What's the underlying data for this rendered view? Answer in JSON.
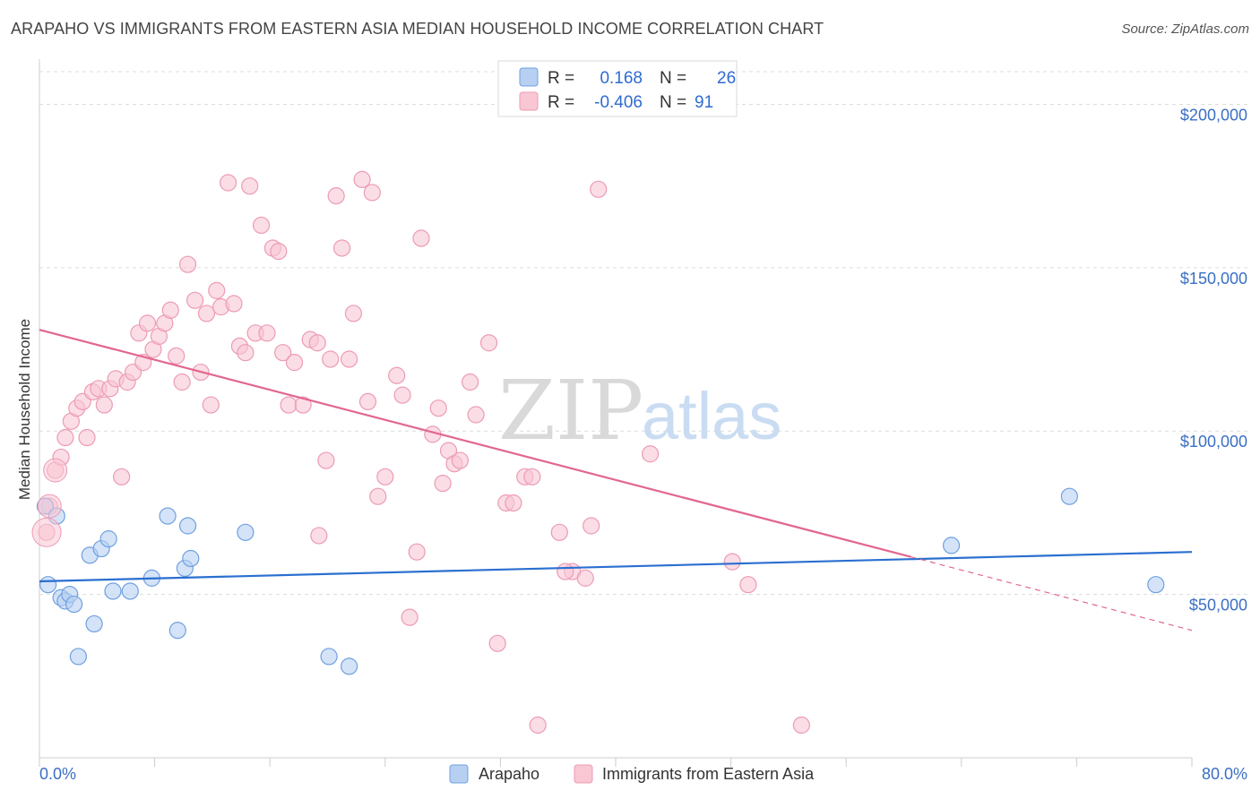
{
  "header": {
    "title": "ARAPAHO VS IMMIGRANTS FROM EASTERN ASIA MEDIAN HOUSEHOLD INCOME CORRELATION CHART",
    "source": "Source: ZipAtlas.com"
  },
  "legend_box": {
    "rows": [
      {
        "r_label": "R =",
        "r_value": "0.168",
        "n_label": "N =",
        "n_value": "26",
        "color": "#a9c8f0"
      },
      {
        "r_label": "R =",
        "r_value": "-0.406",
        "n_label": "N =",
        "n_value": "91",
        "color": "#f5b8cb"
      }
    ]
  },
  "watermark": {
    "zip": "ZIP",
    "atlas": "atlas"
  },
  "chart_data": {
    "type": "scatter",
    "title": "ARAPAHO VS IMMIGRANTS FROM EASTERN ASIA MEDIAN HOUSEHOLD INCOME CORRELATION CHART",
    "ylabel": "Median Household Income",
    "xlim": [
      0,
      80
    ],
    "ylim": [
      0,
      210000
    ],
    "x_tick_labels": [
      "0.0%",
      "80.0%"
    ],
    "y_tick_labels": [
      "$50,000",
      "$100,000",
      "$150,000",
      "$200,000"
    ],
    "y_ticks": [
      50000,
      100000,
      150000,
      200000
    ],
    "grid": true,
    "legend_position": "bottom-center",
    "series": [
      {
        "name": "Arapaho",
        "color": "#6fa0e0",
        "fill": "#b7d0f2",
        "trend": {
          "x": [
            0,
            80
          ],
          "y": [
            54000,
            63000
          ],
          "color": "#2a6fd0"
        },
        "points": [
          [
            0.4,
            77000
          ],
          [
            0.6,
            53000
          ],
          [
            1.2,
            74000
          ],
          [
            1.5,
            49000
          ],
          [
            1.8,
            48000
          ],
          [
            2.1,
            50000
          ],
          [
            2.4,
            47000
          ],
          [
            2.7,
            31000
          ],
          [
            3.5,
            62000
          ],
          [
            3.8,
            41000
          ],
          [
            4.3,
            64000
          ],
          [
            4.8,
            67000
          ],
          [
            5.1,
            51000
          ],
          [
            6.3,
            51000
          ],
          [
            7.8,
            55000
          ],
          [
            8.9,
            74000
          ],
          [
            9.6,
            39000
          ],
          [
            10.1,
            58000
          ],
          [
            10.3,
            71000
          ],
          [
            10.5,
            61000
          ],
          [
            14.3,
            69000
          ],
          [
            20.1,
            31000
          ],
          [
            21.5,
            28000
          ],
          [
            63.3,
            65000
          ],
          [
            71.5,
            80000
          ],
          [
            77.5,
            53000
          ]
        ]
      },
      {
        "name": "Immigrants from Eastern Asia",
        "color": "#ec9bb5",
        "fill": "#f9c6d4",
        "trend": {
          "x": [
            0,
            60.5
          ],
          "y": [
            131000,
            61500
          ],
          "color": "#e26690"
        },
        "trend_dashed": {
          "x": [
            60.5,
            80
          ],
          "y": [
            61500,
            39000
          ]
        },
        "points": [
          [
            0.5,
            69000
          ],
          [
            0.7,
            77000
          ],
          [
            1.1,
            88000
          ],
          [
            1.5,
            92000
          ],
          [
            1.8,
            98000
          ],
          [
            2.2,
            103000
          ],
          [
            2.6,
            107000
          ],
          [
            3.0,
            109000
          ],
          [
            3.3,
            98000
          ],
          [
            3.7,
            112000
          ],
          [
            4.1,
            113000
          ],
          [
            4.5,
            108000
          ],
          [
            4.9,
            113000
          ],
          [
            5.3,
            116000
          ],
          [
            5.7,
            86000
          ],
          [
            6.1,
            115000
          ],
          [
            6.5,
            118000
          ],
          [
            6.9,
            130000
          ],
          [
            7.2,
            121000
          ],
          [
            7.5,
            133000
          ],
          [
            7.9,
            125000
          ],
          [
            8.3,
            129000
          ],
          [
            8.7,
            133000
          ],
          [
            9.1,
            137000
          ],
          [
            9.5,
            123000
          ],
          [
            9.9,
            115000
          ],
          [
            10.3,
            151000
          ],
          [
            10.8,
            140000
          ],
          [
            11.2,
            118000
          ],
          [
            11.6,
            136000
          ],
          [
            11.9,
            108000
          ],
          [
            12.3,
            143000
          ],
          [
            12.6,
            138000
          ],
          [
            13.1,
            176000
          ],
          [
            13.5,
            139000
          ],
          [
            13.9,
            126000
          ],
          [
            14.3,
            124000
          ],
          [
            14.6,
            175000
          ],
          [
            15.0,
            130000
          ],
          [
            15.4,
            163000
          ],
          [
            15.8,
            130000
          ],
          [
            16.2,
            156000
          ],
          [
            16.6,
            155000
          ],
          [
            16.9,
            124000
          ],
          [
            17.3,
            108000
          ],
          [
            17.7,
            121000
          ],
          [
            18.3,
            108000
          ],
          [
            18.8,
            128000
          ],
          [
            19.3,
            127000
          ],
          [
            19.9,
            91000
          ],
          [
            20.2,
            122000
          ],
          [
            20.6,
            172000
          ],
          [
            21.0,
            156000
          ],
          [
            21.5,
            122000
          ],
          [
            21.8,
            136000
          ],
          [
            22.4,
            177000
          ],
          [
            22.8,
            109000
          ],
          [
            23.1,
            173000
          ],
          [
            23.5,
            80000
          ],
          [
            24.0,
            86000
          ],
          [
            24.8,
            117000
          ],
          [
            25.2,
            111000
          ],
          [
            25.7,
            43000
          ],
          [
            26.2,
            63000
          ],
          [
            26.5,
            159000
          ],
          [
            27.3,
            99000
          ],
          [
            27.7,
            107000
          ],
          [
            28.0,
            84000
          ],
          [
            28.4,
            94000
          ],
          [
            28.8,
            90000
          ],
          [
            29.2,
            91000
          ],
          [
            29.9,
            115000
          ],
          [
            30.3,
            105000
          ],
          [
            31.2,
            127000
          ],
          [
            31.8,
            35000
          ],
          [
            32.4,
            78000
          ],
          [
            32.9,
            78000
          ],
          [
            33.7,
            86000
          ],
          [
            34.2,
            86000
          ],
          [
            34.6,
            10000
          ],
          [
            36.1,
            69000
          ],
          [
            37.0,
            57000
          ],
          [
            37.9,
            55000
          ],
          [
            38.3,
            71000
          ],
          [
            38.8,
            174000
          ],
          [
            42.4,
            93000
          ],
          [
            48.1,
            60000
          ],
          [
            49.2,
            53000
          ],
          [
            52.9,
            10000
          ],
          [
            36.5,
            57000
          ],
          [
            19.4,
            68000
          ]
        ]
      }
    ]
  }
}
